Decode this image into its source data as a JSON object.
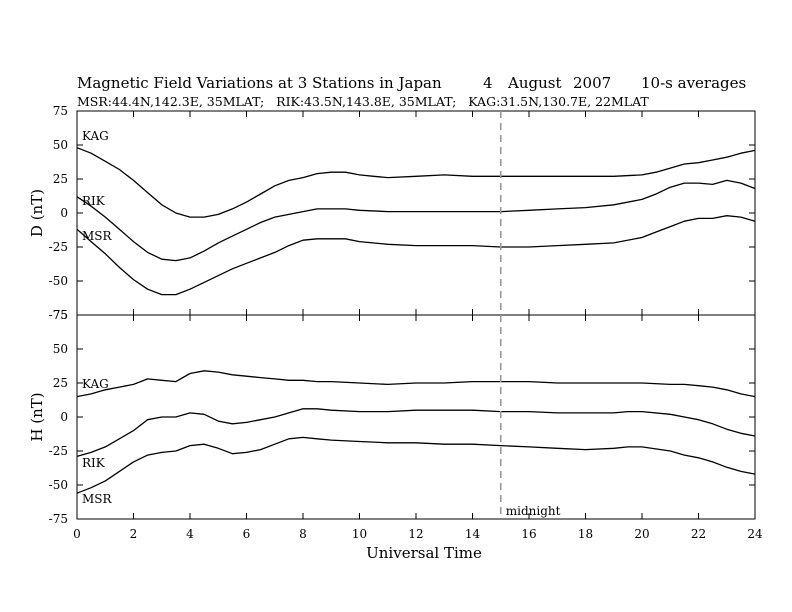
{
  "title": {
    "main": "Magnetic Field Variations at 3 Stations in Japan",
    "date_day": "4",
    "date_month": "August",
    "date_year": "2007",
    "averaging": "10-s averages"
  },
  "subtitle": "MSR:44.4N,142.3E, 35MLAT;   RIK:43.5N,143.8E, 35MLAT;   KAG:31.5N,130.7E, 22MLAT",
  "colors": {
    "line": "#000000",
    "midnight_marker": "#999999",
    "background": "#ffffff"
  },
  "chart_data": {
    "type": "line",
    "xlabel": "Universal Time",
    "xlim": [
      0,
      24
    ],
    "xticks": [
      0,
      2,
      4,
      6,
      8,
      10,
      12,
      14,
      16,
      18,
      20,
      22,
      24
    ],
    "xtick_labels": [
      "0",
      "2",
      "4",
      "6",
      "8",
      "10",
      "12",
      "14",
      "16",
      "18",
      "20",
      "22",
      "24"
    ],
    "grid": false,
    "annotations": [
      {
        "text": "midnight",
        "x": 15,
        "style": "dashed vertical line"
      }
    ],
    "panels": [
      {
        "ylabel": "D (nT)",
        "ylim": [
          -75,
          75
        ],
        "yticks": [
          75,
          50,
          25,
          0,
          -25,
          -50,
          -75
        ],
        "ytick_labels": [
          "75",
          "50",
          "25",
          "0",
          "-25",
          "-50",
          "-75"
        ],
        "series": [
          {
            "name": "KAG",
            "x": [
              0,
              0.5,
              1,
              1.5,
              2,
              2.5,
              3,
              3.5,
              4,
              4.5,
              5,
              5.5,
              6,
              6.5,
              7,
              7.5,
              8,
              8.5,
              9,
              9.5,
              10,
              10.5,
              11,
              12,
              13,
              14,
              15,
              16,
              17,
              18,
              19,
              20,
              20.5,
              21,
              21.5,
              22,
              22.5,
              23,
              23.5,
              24
            ],
            "values": [
              48,
              44,
              38,
              32,
              24,
              15,
              6,
              0,
              -3,
              -3,
              -1,
              3,
              8,
              14,
              20,
              24,
              26,
              29,
              30,
              30,
              28,
              27,
              26,
              27,
              28,
              27,
              27,
              27,
              27,
              27,
              27,
              28,
              30,
              33,
              36,
              37,
              39,
              41,
              44,
              46
            ]
          },
          {
            "name": "RIK",
            "x": [
              0,
              0.5,
              1,
              1.5,
              2,
              2.5,
              3,
              3.5,
              4,
              4.5,
              5,
              5.5,
              6,
              6.5,
              7,
              7.5,
              8,
              8.5,
              9,
              9.5,
              10,
              11,
              12,
              13,
              14,
              15,
              16,
              17,
              18,
              19,
              20,
              20.5,
              21,
              21.5,
              22,
              22.5,
              23,
              23.5,
              24
            ],
            "values": [
              12,
              5,
              -3,
              -12,
              -21,
              -29,
              -34,
              -35,
              -33,
              -28,
              -22,
              -17,
              -12,
              -7,
              -3,
              -1,
              1,
              3,
              3,
              3,
              2,
              1,
              1,
              1,
              1,
              1,
              2,
              3,
              4,
              6,
              10,
              14,
              19,
              22,
              22,
              21,
              24,
              22,
              18
            ]
          },
          {
            "name": "MSR",
            "x": [
              0,
              0.5,
              1,
              1.5,
              2,
              2.5,
              3,
              3.5,
              4,
              4.5,
              5,
              5.5,
              6,
              6.5,
              7,
              7.5,
              8,
              8.5,
              9,
              9.5,
              10,
              11,
              12,
              13,
              14,
              15,
              16,
              17,
              18,
              19,
              20,
              20.5,
              21,
              21.5,
              22,
              22.5,
              23,
              23.5,
              24
            ],
            "values": [
              -12,
              -21,
              -30,
              -40,
              -49,
              -56,
              -60,
              -60,
              -56,
              -51,
              -46,
              -41,
              -37,
              -33,
              -29,
              -24,
              -20,
              -19,
              -19,
              -19,
              -21,
              -23,
              -24,
              -24,
              -24,
              -25,
              -25,
              -24,
              -23,
              -22,
              -18,
              -14,
              -10,
              -6,
              -4,
              -4,
              -2,
              -3,
              -6
            ]
          }
        ]
      },
      {
        "ylabel": "H (nT)",
        "ylim": [
          -75,
          75
        ],
        "yticks": [
          75,
          50,
          25,
          0,
          -25,
          -50,
          -75
        ],
        "ytick_labels": [
          "75",
          "50",
          "25",
          "0",
          "-25",
          "-50",
          "-75"
        ],
        "series": [
          {
            "name": "KAG",
            "x": [
              0,
              0.5,
              1,
              1.5,
              2,
              2.5,
              3,
              3.5,
              4,
              4.5,
              5,
              5.5,
              6,
              6.5,
              7,
              7.5,
              8,
              8.5,
              9,
              10,
              11,
              12,
              13,
              14,
              15,
              16,
              17,
              18,
              19,
              20,
              21,
              21.5,
              22,
              22.5,
              23,
              23.5,
              24
            ],
            "values": [
              15,
              17,
              20,
              22,
              24,
              28,
              27,
              26,
              32,
              34,
              33,
              31,
              30,
              29,
              28,
              27,
              27,
              26,
              26,
              25,
              24,
              25,
              25,
              26,
              26,
              26,
              25,
              25,
              25,
              25,
              24,
              24,
              23,
              22,
              20,
              17,
              15
            ]
          },
          {
            "name": "RIK",
            "x": [
              0,
              0.5,
              1,
              1.5,
              2,
              2.5,
              3,
              3.5,
              4,
              4.5,
              5,
              5.5,
              6,
              6.5,
              7,
              7.5,
              8,
              8.5,
              9,
              10,
              11,
              12,
              13,
              14,
              15,
              16,
              17,
              18,
              19,
              19.5,
              20,
              21,
              21.5,
              22,
              22.5,
              23,
              23.5,
              24
            ],
            "values": [
              -29,
              -26,
              -22,
              -16,
              -10,
              -2,
              0,
              0,
              3,
              2,
              -3,
              -5,
              -4,
              -2,
              0,
              3,
              6,
              6,
              5,
              4,
              4,
              5,
              5,
              5,
              4,
              4,
              3,
              3,
              3,
              4,
              4,
              2,
              0,
              -2,
              -5,
              -9,
              -12,
              -14
            ]
          },
          {
            "name": "MSR",
            "x": [
              0,
              0.5,
              1,
              1.5,
              2,
              2.5,
              3,
              3.5,
              4,
              4.5,
              5,
              5.5,
              6,
              6.5,
              7,
              7.5,
              8,
              8.5,
              9,
              10,
              11,
              12,
              13,
              14,
              15,
              16,
              17,
              18,
              19,
              19.5,
              20,
              21,
              21.5,
              22,
              22.5,
              23,
              23.5,
              24
            ],
            "values": [
              -56,
              -52,
              -47,
              -40,
              -33,
              -28,
              -26,
              -25,
              -21,
              -20,
              -23,
              -27,
              -26,
              -24,
              -20,
              -16,
              -15,
              -16,
              -17,
              -18,
              -19,
              -19,
              -20,
              -20,
              -21,
              -22,
              -23,
              -24,
              -23,
              -22,
              -22,
              -25,
              -28,
              -30,
              -33,
              -37,
              -40,
              -42
            ]
          }
        ]
      }
    ]
  }
}
